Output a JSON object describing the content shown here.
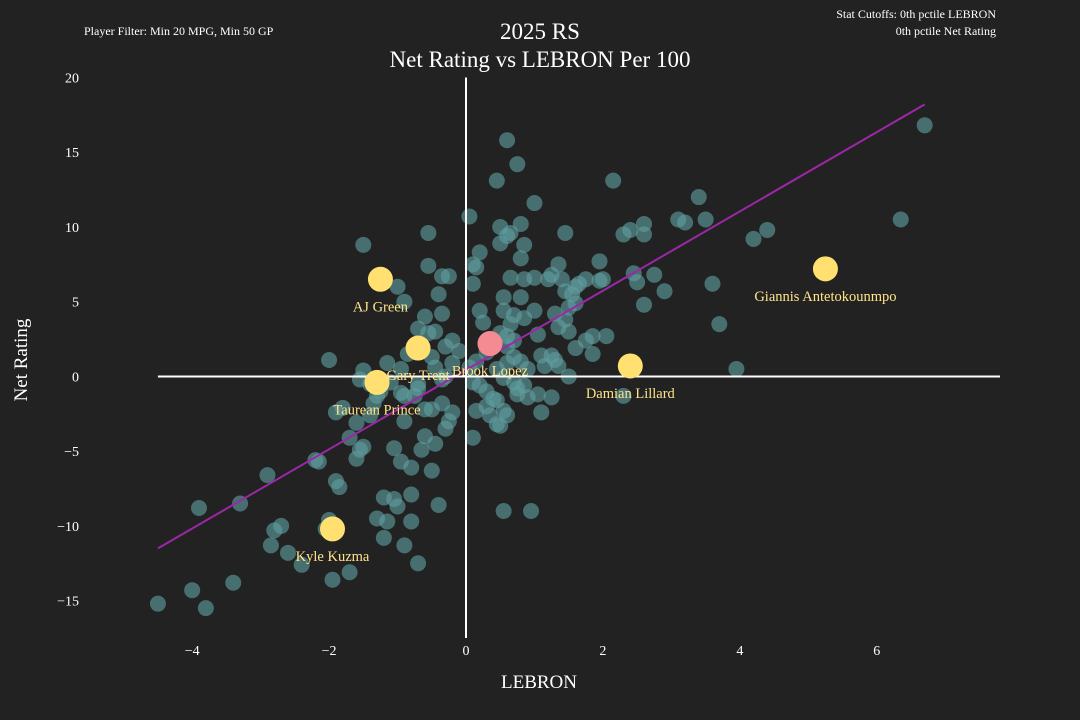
{
  "header": {
    "player_filter": "Player Filter: Min 20 MPG, Min 50 GP",
    "cutoff_line1": "Stat Cutoffs: 0th pctile LEBRON",
    "cutoff_line2": "0th pctile Net Rating"
  },
  "chart_data": {
    "type": "scatter",
    "title": "2025 RS",
    "subtitle": "Net Rating vs LEBRON Per 100",
    "xlabel": "LEBRON",
    "ylabel": "Net Rating",
    "xlim": [
      -5.2,
      7.8
    ],
    "ylim": [
      -18.3,
      20.5
    ],
    "xticks": [
      {
        "v": -4,
        "label": "−4"
      },
      {
        "v": -2,
        "label": "−2"
      },
      {
        "v": 0,
        "label": "0"
      },
      {
        "v": 2,
        "label": "2"
      },
      {
        "v": 4,
        "label": "4"
      },
      {
        "v": 6,
        "label": "6"
      }
    ],
    "yticks": [
      {
        "v": 20,
        "label": "20"
      },
      {
        "v": 15,
        "label": "15"
      },
      {
        "v": 10,
        "label": "10"
      },
      {
        "v": 5,
        "label": "5"
      },
      {
        "v": 0,
        "label": "0"
      },
      {
        "v": -5,
        "label": "−5"
      },
      {
        "v": -10,
        "label": "−10"
      },
      {
        "v": -15,
        "label": "−15"
      }
    ],
    "grid": false,
    "zero_lines": true,
    "colors": {
      "background": "#222222",
      "points": "#5f9ea0",
      "highlight": "#ffe070",
      "highlight_label": "#ffe48a",
      "focus": "#f48b93",
      "trend": "#9c27a8",
      "axis": "#ffffff"
    },
    "trendline": {
      "x": [
        -4.5,
        6.7
      ],
      "y": [
        -11.5,
        18.2
      ]
    },
    "points": [
      [
        -4.5,
        -15.2
      ],
      [
        -4.0,
        -14.3
      ],
      [
        -3.8,
        -15.5
      ],
      [
        -3.4,
        -13.8
      ],
      [
        -3.9,
        -8.8
      ],
      [
        -3.3,
        -8.5
      ],
      [
        -2.9,
        -6.6
      ],
      [
        -2.8,
        -10.3
      ],
      [
        -2.7,
        -10.0
      ],
      [
        -2.85,
        -11.3
      ],
      [
        -2.6,
        -11.8
      ],
      [
        -2.4,
        -12.6
      ],
      [
        -2.2,
        -5.6
      ],
      [
        -2.15,
        -5.7
      ],
      [
        -2.05,
        -10.2
      ],
      [
        -2.0,
        -9.6
      ],
      [
        -1.95,
        -13.6
      ],
      [
        -1.9,
        -7.0
      ],
      [
        -1.85,
        -7.4
      ],
      [
        -1.7,
        -13.1
      ],
      [
        -1.6,
        -3.1
      ],
      [
        -1.9,
        -2.4
      ],
      [
        -1.8,
        -2.1
      ],
      [
        -1.55,
        -4.9
      ],
      [
        -1.5,
        -4.7
      ],
      [
        -1.4,
        -2.6
      ],
      [
        -1.35,
        -1.8
      ],
      [
        -1.7,
        -4.1
      ],
      [
        -1.6,
        -5.5
      ],
      [
        -1.2,
        -8.1
      ],
      [
        -1.15,
        -9.7
      ],
      [
        -1.1,
        -0.4
      ],
      [
        -1.05,
        -4.8
      ],
      [
        -1.0,
        -8.7
      ],
      [
        -0.95,
        -5.7
      ],
      [
        -0.9,
        -3.0
      ],
      [
        -0.8,
        -6.1
      ],
      [
        -0.8,
        -9.7
      ],
      [
        -0.75,
        -1.3
      ],
      [
        -0.7,
        -0.8
      ],
      [
        -0.65,
        -4.9
      ],
      [
        -0.6,
        -4.0
      ],
      [
        -0.5,
        -6.3
      ],
      [
        -0.45,
        -4.5
      ],
      [
        -0.4,
        -8.6
      ],
      [
        -0.35,
        -1.8
      ],
      [
        -0.3,
        -3.5
      ],
      [
        -0.25,
        -3.0
      ],
      [
        -0.6,
        -2.2
      ],
      [
        -0.9,
        -1.3
      ],
      [
        -1.3,
        -1.3
      ],
      [
        -1.4,
        -0.5
      ],
      [
        -1.5,
        0.4
      ],
      [
        -0.95,
        0.5
      ],
      [
        -1.15,
        0.9
      ],
      [
        -0.85,
        1.5
      ],
      [
        -0.7,
        1.7
      ],
      [
        -0.5,
        1.3
      ],
      [
        -0.45,
        0.6
      ],
      [
        -0.3,
        0.0
      ],
      [
        -0.2,
        0.9
      ],
      [
        -0.1,
        1.7
      ],
      [
        -0.55,
        2.9
      ],
      [
        -0.45,
        3.0
      ],
      [
        -0.35,
        4.2
      ],
      [
        -0.6,
        4.0
      ],
      [
        -0.4,
        5.5
      ],
      [
        -0.35,
        6.7
      ],
      [
        -0.25,
        6.7
      ],
      [
        -0.55,
        7.4
      ],
      [
        -0.55,
        9.6
      ],
      [
        -1.5,
        8.8
      ],
      [
        -1.0,
        6.0
      ],
      [
        -0.9,
        5.0
      ],
      [
        -0.7,
        3.2
      ],
      [
        -0.3,
        2.0
      ],
      [
        -0.2,
        2.4
      ],
      [
        -0.35,
        -0.2
      ],
      [
        -0.2,
        -2.4
      ],
      [
        -0.5,
        -2.2
      ],
      [
        -0.7,
        -0.5
      ],
      [
        -0.95,
        -1.1
      ],
      [
        -1.25,
        -1.0
      ],
      [
        -0.8,
        -7.9
      ],
      [
        -0.9,
        -11.3
      ],
      [
        -0.7,
        -12.5
      ],
      [
        -1.05,
        -8.2
      ],
      [
        -1.3,
        -9.5
      ],
      [
        -1.2,
        -10.8
      ],
      [
        -2.0,
        1.1
      ],
      [
        -1.55,
        -0.2
      ],
      [
        0.05,
        10.7
      ],
      [
        0.1,
        7.5
      ],
      [
        0.15,
        7.3
      ],
      [
        0.2,
        8.3
      ],
      [
        0.1,
        6.2
      ],
      [
        0.2,
        4.4
      ],
      [
        0.25,
        3.6
      ],
      [
        0.3,
        1.6
      ],
      [
        0.15,
        1.0
      ],
      [
        0.05,
        0.6
      ],
      [
        0.1,
        -0.4
      ],
      [
        0.2,
        -0.6
      ],
      [
        0.3,
        -1.0
      ],
      [
        0.4,
        -1.5
      ],
      [
        0.3,
        -2.0
      ],
      [
        0.35,
        -2.6
      ],
      [
        0.15,
        -2.3
      ],
      [
        0.1,
        -4.1
      ],
      [
        0.45,
        -1.6
      ],
      [
        0.55,
        -2.3
      ],
      [
        0.5,
        -3.3
      ],
      [
        0.6,
        -2.6
      ],
      [
        0.75,
        -1.2
      ],
      [
        0.9,
        -1.4
      ],
      [
        1.05,
        -1.2
      ],
      [
        1.1,
        -2.4
      ],
      [
        1.25,
        -1.4
      ],
      [
        0.85,
        -0.6
      ],
      [
        0.7,
        -0.4
      ],
      [
        0.55,
        -0.1
      ],
      [
        0.45,
        0.5
      ],
      [
        0.6,
        0.9
      ],
      [
        0.7,
        1.3
      ],
      [
        0.8,
        1.0
      ],
      [
        0.9,
        0.5
      ],
      [
        1.15,
        0.7
      ],
      [
        1.35,
        0.7
      ],
      [
        1.3,
        1.1
      ],
      [
        1.5,
        0.0
      ],
      [
        1.1,
        1.4
      ],
      [
        1.25,
        1.4
      ],
      [
        0.6,
        2.0
      ],
      [
        0.7,
        2.4
      ],
      [
        0.6,
        2.7
      ],
      [
        0.5,
        2.9
      ],
      [
        0.65,
        3.5
      ],
      [
        0.85,
        3.9
      ],
      [
        0.7,
        4.1
      ],
      [
        0.55,
        4.4
      ],
      [
        1.0,
        4.4
      ],
      [
        1.3,
        4.2
      ],
      [
        1.35,
        3.3
      ],
      [
        1.5,
        3.0
      ],
      [
        1.45,
        3.8
      ],
      [
        1.6,
        4.9
      ],
      [
        1.55,
        5.5
      ],
      [
        1.45,
        5.7
      ],
      [
        1.6,
        6.0
      ],
      [
        1.75,
        6.5
      ],
      [
        1.95,
        6.4
      ],
      [
        2.0,
        6.5
      ],
      [
        2.5,
        6.3
      ],
      [
        2.6,
        4.8
      ],
      [
        2.75,
        6.8
      ],
      [
        2.9,
        5.7
      ],
      [
        1.65,
        6.2
      ],
      [
        1.4,
        6.5
      ],
      [
        1.2,
        6.5
      ],
      [
        1.0,
        6.6
      ],
      [
        0.85,
        6.5
      ],
      [
        0.8,
        5.3
      ],
      [
        0.55,
        5.3
      ],
      [
        0.65,
        6.6
      ],
      [
        1.35,
        7.5
      ],
      [
        1.25,
        6.8
      ],
      [
        0.8,
        7.9
      ],
      [
        0.85,
        8.8
      ],
      [
        0.5,
        8.9
      ],
      [
        0.5,
        10.0
      ],
      [
        0.6,
        9.4
      ],
      [
        0.65,
        9.6
      ],
      [
        0.8,
        10.2
      ],
      [
        1.0,
        11.6
      ],
      [
        1.45,
        9.6
      ],
      [
        1.95,
        7.7
      ],
      [
        2.15,
        13.1
      ],
      [
        2.3,
        9.5
      ],
      [
        2.4,
        9.8
      ],
      [
        2.45,
        6.9
      ],
      [
        2.6,
        10.2
      ],
      [
        2.6,
        9.5
      ],
      [
        3.1,
        10.5
      ],
      [
        3.2,
        10.3
      ],
      [
        3.4,
        12.0
      ],
      [
        3.5,
        10.5
      ],
      [
        3.6,
        6.2
      ],
      [
        3.7,
        3.5
      ],
      [
        3.95,
        0.5
      ],
      [
        2.3,
        -1.3
      ],
      [
        0.95,
        -9.0
      ],
      [
        0.55,
        -9.0
      ],
      [
        0.45,
        -3.2
      ],
      [
        0.75,
        -0.8
      ],
      [
        1.6,
        1.9
      ],
      [
        1.75,
        2.4
      ],
      [
        1.85,
        2.7
      ],
      [
        2.05,
        2.7
      ],
      [
        1.85,
        1.5
      ],
      [
        4.2,
        9.2
      ],
      [
        4.4,
        9.8
      ],
      [
        6.35,
        10.5
      ],
      [
        6.7,
        16.8
      ],
      [
        0.45,
        13.1
      ],
      [
        0.6,
        15.8
      ],
      [
        0.75,
        14.2
      ],
      [
        1.5,
        4.6
      ],
      [
        1.05,
        2.8
      ],
      [
        0.35,
        2.4
      ]
    ],
    "focus_point": {
      "x": 0.35,
      "y": 2.2
    },
    "highlighted": [
      {
        "name": "AJ Green",
        "x": -1.25,
        "y": 6.5
      },
      {
        "name": "Gary Trent",
        "x": -0.7,
        "y": 1.9
      },
      {
        "name": "Brook Lopez",
        "x": 0.35,
        "y": 2.2
      },
      {
        "name": "Taurean Prince",
        "x": -1.3,
        "y": -0.4
      },
      {
        "name": "Kyle Kuzma",
        "x": -1.95,
        "y": -10.2
      },
      {
        "name": "Damian Lillard",
        "x": 2.4,
        "y": 0.7
      },
      {
        "name": "Giannis Antetokounmpo",
        "x": 5.25,
        "y": 7.2
      }
    ]
  }
}
